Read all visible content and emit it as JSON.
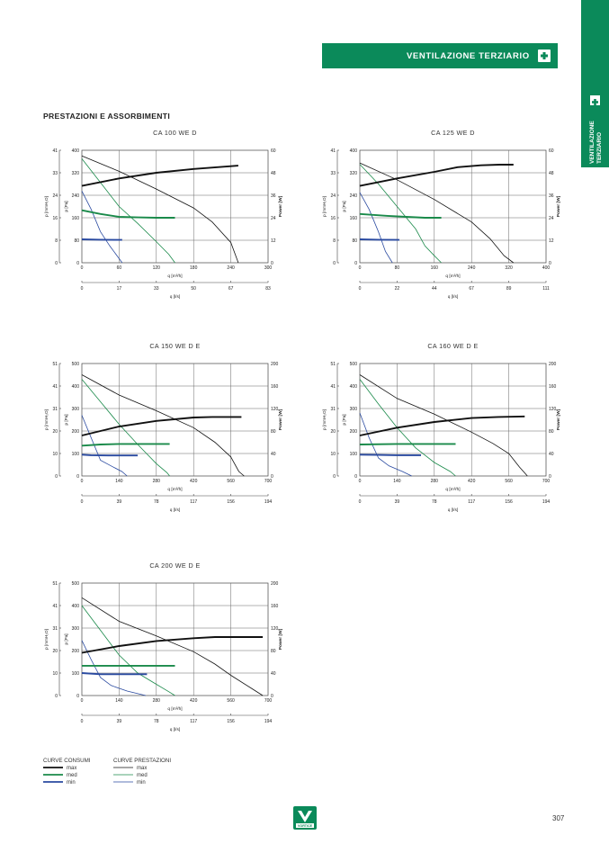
{
  "header": {
    "banner_title": "VENTILAZIONE TERZIARIO",
    "side_tab_line1": "VENTILAZIONE",
    "side_tab_line2": "TERZIARIO",
    "brand_green": "#0b8a5a",
    "banner_icon": "plus-icon"
  },
  "section_title": "PRESTAZIONI E ASSORBIMENTI",
  "legend": {
    "consumi_title": "CURVE CONSUMI",
    "prestazioni_title": "CURVE PRESTAZIONI",
    "items": [
      "max",
      "med",
      "min"
    ],
    "colors": {
      "max": "#111111",
      "med": "#1a8a4a",
      "min": "#2a4aa0"
    }
  },
  "footer": {
    "page_number": "307",
    "logo_text": "VORTICE"
  },
  "chart_data": [
    {
      "type": "line",
      "title": "CA 100 WE D",
      "xlabel": "q [m³/h]",
      "xlabel2": "q [l/s]",
      "ylabel_left": "p [mmH₂O]",
      "ylabel_pa": "p [Pa]",
      "ylabel_right": "Power [W]",
      "x_ticks": [
        "0",
        "60",
        "120",
        "180",
        "240",
        "300"
      ],
      "x2_ticks": [
        "0",
        "17",
        "33",
        "50",
        "67",
        "83"
      ],
      "y_pa_ticks": [
        "0",
        "80",
        "160",
        "240",
        "320",
        "400"
      ],
      "y_mm_ticks": [
        "0",
        "8",
        "16",
        "24",
        "33",
        "41"
      ],
      "y_power_ticks": [
        "0",
        "12",
        "24",
        "36",
        "48",
        "60"
      ],
      "xlim": [
        0,
        300
      ],
      "ylim": [
        0,
        400
      ],
      "power_lim": [
        0,
        60
      ],
      "pressure": {
        "max": [
          [
            0,
            380
          ],
          [
            60,
            325
          ],
          [
            120,
            262
          ],
          [
            180,
            195
          ],
          [
            210,
            145
          ],
          [
            240,
            72
          ],
          [
            252,
            0
          ]
        ],
        "med": [
          [
            0,
            370
          ],
          [
            30,
            285
          ],
          [
            60,
            200
          ],
          [
            90,
            140
          ],
          [
            120,
            75
          ],
          [
            140,
            30
          ],
          [
            150,
            0
          ]
        ],
        "min": [
          [
            0,
            255
          ],
          [
            15,
            190
          ],
          [
            30,
            110
          ],
          [
            45,
            60
          ],
          [
            55,
            30
          ],
          [
            65,
            0
          ]
        ]
      },
      "power": {
        "max": [
          [
            0,
            41
          ],
          [
            60,
            45
          ],
          [
            120,
            48
          ],
          [
            180,
            50
          ],
          [
            240,
            51.5
          ],
          [
            252,
            51.8
          ]
        ],
        "med": [
          [
            0,
            28
          ],
          [
            30,
            26
          ],
          [
            60,
            24.5
          ],
          [
            90,
            24.2
          ],
          [
            120,
            24
          ],
          [
            150,
            24
          ]
        ],
        "min": [
          [
            0,
            12.5
          ],
          [
            30,
            12.3
          ],
          [
            65,
            12.2
          ]
        ]
      }
    },
    {
      "type": "line",
      "title": "CA 125 WE D",
      "xlabel": "q [m³/h]",
      "xlabel2": "q [l/s]",
      "ylabel_left": "p [mmH₂O]",
      "ylabel_pa": "p [Pa]",
      "ylabel_right": "Power [W]",
      "x_ticks": [
        "0",
        "80",
        "160",
        "240",
        "320",
        "400"
      ],
      "x2_ticks": [
        "0",
        "22",
        "44",
        "67",
        "89",
        "111"
      ],
      "y_pa_ticks": [
        "0",
        "80",
        "160",
        "240",
        "320",
        "400"
      ],
      "y_mm_ticks": [
        "0",
        "8",
        "16",
        "24",
        "33",
        "41"
      ],
      "y_power_ticks": [
        "0",
        "12",
        "24",
        "36",
        "48",
        "60"
      ],
      "xlim": [
        0,
        400
      ],
      "ylim": [
        0,
        400
      ],
      "power_lim": [
        0,
        60
      ],
      "pressure": {
        "max": [
          [
            0,
            355
          ],
          [
            80,
            295
          ],
          [
            160,
            225
          ],
          [
            240,
            145
          ],
          [
            280,
            85
          ],
          [
            310,
            25
          ],
          [
            330,
            0
          ]
        ],
        "med": [
          [
            0,
            350
          ],
          [
            40,
            280
          ],
          [
            80,
            200
          ],
          [
            120,
            120
          ],
          [
            140,
            60
          ],
          [
            160,
            25
          ],
          [
            175,
            0
          ]
        ],
        "min": [
          [
            0,
            250
          ],
          [
            20,
            190
          ],
          [
            40,
            110
          ],
          [
            55,
            40
          ],
          [
            70,
            0
          ]
        ]
      },
      "power": {
        "max": [
          [
            0,
            41
          ],
          [
            80,
            45
          ],
          [
            160,
            48.5
          ],
          [
            210,
            51
          ],
          [
            260,
            52
          ],
          [
            300,
            52.3
          ],
          [
            330,
            52.3
          ]
        ],
        "med": [
          [
            0,
            26
          ],
          [
            60,
            25
          ],
          [
            100,
            24.5
          ],
          [
            140,
            24
          ],
          [
            175,
            24
          ]
        ],
        "min": [
          [
            0,
            12.5
          ],
          [
            40,
            12.3
          ],
          [
            85,
            12.2
          ]
        ]
      }
    },
    {
      "type": "line",
      "title": "CA 150 WE D E",
      "xlabel": "q [m³/h]",
      "xlabel2": "q [l/s]",
      "ylabel_left": "p [mmH₂O]",
      "ylabel_pa": "p [Pa]",
      "ylabel_right": "Power [W]",
      "x_ticks": [
        "0",
        "140",
        "280",
        "420",
        "560",
        "700"
      ],
      "x2_ticks": [
        "0",
        "39",
        "78",
        "117",
        "156",
        "194"
      ],
      "y_pa_ticks": [
        "0",
        "100",
        "200",
        "300",
        "400",
        "500"
      ],
      "y_mm_ticks": [
        "0",
        "10",
        "20",
        "31",
        "41",
        "51"
      ],
      "y_power_ticks": [
        "0",
        "40",
        "80",
        "120",
        "160",
        "200"
      ],
      "xlim": [
        0,
        700
      ],
      "ylim": [
        0,
        500
      ],
      "power_lim": [
        0,
        200
      ],
      "pressure": {
        "max": [
          [
            0,
            450
          ],
          [
            140,
            360
          ],
          [
            280,
            290
          ],
          [
            420,
            215
          ],
          [
            500,
            150
          ],
          [
            560,
            85
          ],
          [
            590,
            20
          ],
          [
            610,
            0
          ]
        ],
        "med": [
          [
            0,
            430
          ],
          [
            70,
            330
          ],
          [
            140,
            230
          ],
          [
            210,
            140
          ],
          [
            280,
            55
          ],
          [
            320,
            15
          ],
          [
            330,
            0
          ]
        ],
        "min": [
          [
            0,
            270
          ],
          [
            35,
            170
          ],
          [
            70,
            70
          ],
          [
            110,
            45
          ],
          [
            150,
            20
          ],
          [
            170,
            0
          ]
        ]
      },
      "power": {
        "max": [
          [
            0,
            72
          ],
          [
            140,
            88
          ],
          [
            280,
            98
          ],
          [
            420,
            104
          ],
          [
            490,
            105
          ],
          [
            600,
            105
          ]
        ],
        "med": [
          [
            0,
            54
          ],
          [
            70,
            56
          ],
          [
            140,
            57
          ],
          [
            210,
            57
          ],
          [
            330,
            57
          ]
        ],
        "min": [
          [
            0,
            38
          ],
          [
            35,
            37
          ],
          [
            100,
            36.5
          ],
          [
            210,
            36.5
          ]
        ]
      }
    },
    {
      "type": "line",
      "title": "CA 160 WE D E",
      "xlabel": "q [m³/h]",
      "xlabel2": "q [l/s]",
      "ylabel_left": "p [mmH₂O]",
      "ylabel_pa": "p [Pa]",
      "ylabel_right": "Power [W]",
      "x_ticks": [
        "0",
        "140",
        "280",
        "420",
        "560",
        "700"
      ],
      "x2_ticks": [
        "0",
        "39",
        "78",
        "117",
        "156",
        "194"
      ],
      "y_pa_ticks": [
        "0",
        "100",
        "200",
        "300",
        "400",
        "500"
      ],
      "y_mm_ticks": [
        "0",
        "10",
        "20",
        "31",
        "41",
        "51"
      ],
      "y_power_ticks": [
        "0",
        "40",
        "80",
        "120",
        "160",
        "200"
      ],
      "xlim": [
        0,
        700
      ],
      "ylim": [
        0,
        500
      ],
      "power_lim": [
        0,
        200
      ],
      "pressure": {
        "max": [
          [
            0,
            450
          ],
          [
            140,
            345
          ],
          [
            280,
            275
          ],
          [
            420,
            195
          ],
          [
            500,
            145
          ],
          [
            560,
            100
          ],
          [
            600,
            40
          ],
          [
            630,
            0
          ]
        ],
        "med": [
          [
            0,
            430
          ],
          [
            70,
            320
          ],
          [
            140,
            215
          ],
          [
            210,
            125
          ],
          [
            280,
            60
          ],
          [
            340,
            20
          ],
          [
            360,
            0
          ]
        ],
        "min": [
          [
            0,
            280
          ],
          [
            35,
            170
          ],
          [
            70,
            80
          ],
          [
            110,
            45
          ],
          [
            160,
            20
          ],
          [
            195,
            0
          ]
        ]
      },
      "power": {
        "max": [
          [
            0,
            72
          ],
          [
            140,
            86
          ],
          [
            280,
            96
          ],
          [
            420,
            103
          ],
          [
            520,
            105
          ],
          [
            620,
            106
          ]
        ],
        "med": [
          [
            0,
            56
          ],
          [
            140,
            57
          ],
          [
            280,
            57
          ],
          [
            360,
            57
          ]
        ],
        "min": [
          [
            0,
            38
          ],
          [
            70,
            37.5
          ],
          [
            140,
            37
          ],
          [
            230,
            37
          ]
        ]
      }
    },
    {
      "type": "line",
      "title": "CA 200 WE D E",
      "xlabel": "q [m³/h]",
      "xlabel2": "q [l/s]",
      "ylabel_left": "p [mmH₂O]",
      "ylabel_pa": "p [Pa]",
      "ylabel_right": "Power [W]",
      "x_ticks": [
        "0",
        "140",
        "280",
        "420",
        "560",
        "700"
      ],
      "x2_ticks": [
        "0",
        "39",
        "78",
        "117",
        "156",
        "194"
      ],
      "y_pa_ticks": [
        "0",
        "100",
        "200",
        "300",
        "400",
        "500"
      ],
      "y_mm_ticks": [
        "0",
        "10",
        "20",
        "31",
        "41",
        "51"
      ],
      "y_power_ticks": [
        "0",
        "40",
        "80",
        "120",
        "160",
        "200"
      ],
      "xlim": [
        0,
        700
      ],
      "ylim": [
        0,
        500
      ],
      "power_lim": [
        0,
        200
      ],
      "pressure": {
        "max": [
          [
            0,
            435
          ],
          [
            140,
            330
          ],
          [
            280,
            265
          ],
          [
            420,
            195
          ],
          [
            500,
            140
          ],
          [
            560,
            90
          ],
          [
            640,
            30
          ],
          [
            680,
            0
          ]
        ],
        "med": [
          [
            0,
            400
          ],
          [
            70,
            290
          ],
          [
            140,
            180
          ],
          [
            210,
            100
          ],
          [
            280,
            50
          ],
          [
            330,
            15
          ],
          [
            350,
            0
          ]
        ],
        "min": [
          [
            0,
            245
          ],
          [
            35,
            160
          ],
          [
            70,
            80
          ],
          [
            110,
            45
          ],
          [
            170,
            20
          ],
          [
            240,
            0
          ]
        ]
      },
      "power": {
        "max": [
          [
            0,
            76
          ],
          [
            140,
            88
          ],
          [
            280,
            97
          ],
          [
            420,
            102
          ],
          [
            500,
            104
          ],
          [
            680,
            104
          ]
        ],
        "med": [
          [
            0,
            53
          ],
          [
            140,
            53
          ],
          [
            280,
            53
          ],
          [
            350,
            53
          ]
        ],
        "min": [
          [
            0,
            40
          ],
          [
            70,
            38
          ],
          [
            140,
            38
          ],
          [
            245,
            38
          ]
        ]
      }
    }
  ]
}
